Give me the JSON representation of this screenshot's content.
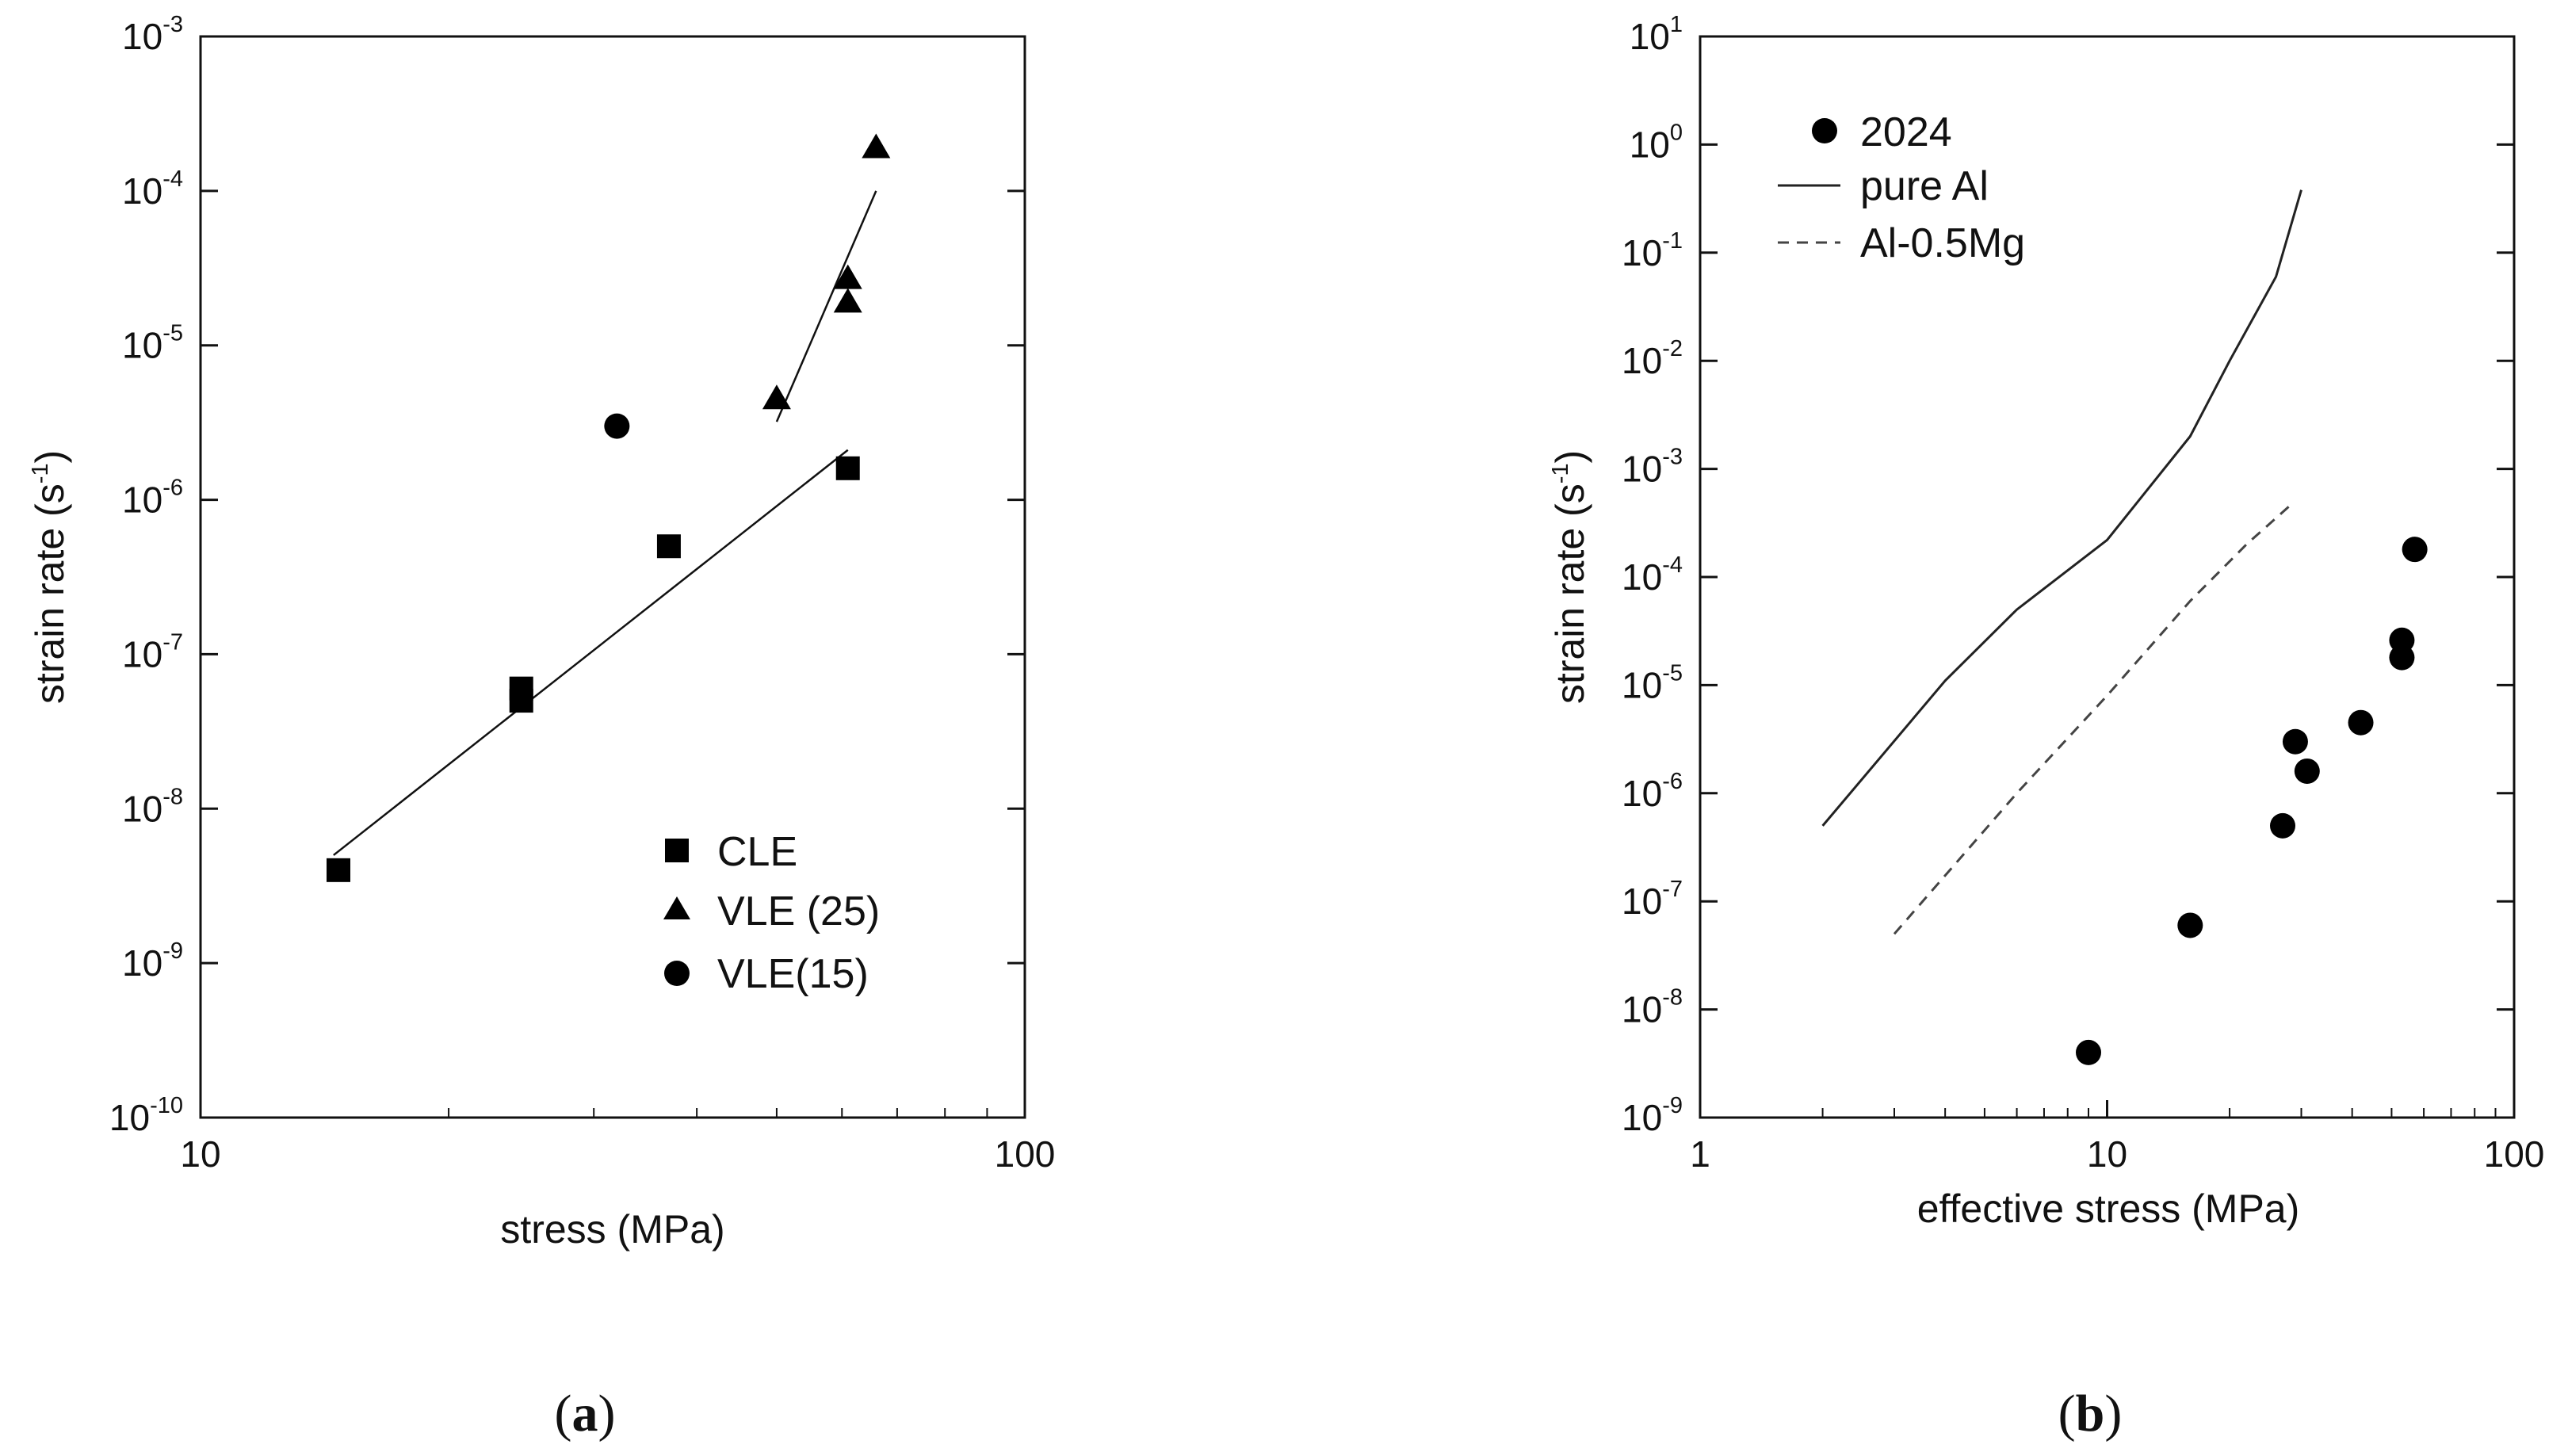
{
  "panels": [
    {
      "type": "scatter",
      "caption_letter": "a",
      "xlabel": "stress (MPa)",
      "ylabel": "strain rate (s",
      "ylabel_sup": "-1",
      "ylabel_close": ")",
      "xscale": "log",
      "yscale": "log",
      "xlim": [
        10,
        100
      ],
      "ylim_exp": [
        -10,
        -3
      ],
      "xticks": [
        {
          "v": 10,
          "label": "10"
        },
        {
          "v": 100,
          "label": "100"
        }
      ],
      "yticks": [
        {
          "exp": -10,
          "label": "-10"
        },
        {
          "exp": -9,
          "label": "-9"
        },
        {
          "exp": -8,
          "label": "-8"
        },
        {
          "exp": -7,
          "label": "-7"
        },
        {
          "exp": -6,
          "label": "-6"
        },
        {
          "exp": -5,
          "label": "-5"
        },
        {
          "exp": -4,
          "label": "-4"
        },
        {
          "exp": -3,
          "label": "-3"
        }
      ],
      "legend_position": "bottom-right",
      "series": [
        {
          "name": "CLE",
          "marker": "square",
          "points": [
            [
              14.7,
              4e-09
            ],
            [
              24.5,
              6e-08
            ],
            [
              24.5,
              5e-08
            ],
            [
              37,
              5e-07
            ],
            [
              61,
              1.6e-06
            ]
          ]
        },
        {
          "name": "VLE (25)",
          "marker": "triangle",
          "points": [
            [
              50,
              4.5e-06
            ],
            [
              61,
              2.7e-05
            ],
            [
              61,
              1.9e-05
            ],
            [
              66,
              0.00019
            ]
          ]
        },
        {
          "name": "VLE(15)",
          "marker": "circle",
          "points": [
            [
              32,
              3e-06
            ]
          ]
        }
      ],
      "fit_lines": [
        {
          "for": "CLE",
          "points": [
            [
              14.5,
              5e-09
            ],
            [
              61,
              2.1e-06
            ]
          ]
        },
        {
          "for": "VLE (25)",
          "points": [
            [
              50,
              3.2e-06
            ],
            [
              66,
              0.0001
            ]
          ]
        }
      ]
    },
    {
      "type": "scatter",
      "caption_letter": "b",
      "xlabel": "effective stress (MPa)",
      "ylabel": "strain rate (s",
      "ylabel_sup": "-1",
      "ylabel_close": ")",
      "xscale": "log",
      "yscale": "log",
      "xlim": [
        1,
        100
      ],
      "ylim_exp": [
        -9,
        1
      ],
      "xticks": [
        {
          "v": 1,
          "label": "1"
        },
        {
          "v": 10,
          "label": "10"
        },
        {
          "v": 100,
          "label": "100"
        }
      ],
      "yticks": [
        {
          "exp": -9,
          "label": "-9"
        },
        {
          "exp": -8,
          "label": "-8"
        },
        {
          "exp": -7,
          "label": "-7"
        },
        {
          "exp": -6,
          "label": "-6"
        },
        {
          "exp": -5,
          "label": "-5"
        },
        {
          "exp": -4,
          "label": "-4"
        },
        {
          "exp": -3,
          "label": "-3"
        },
        {
          "exp": -2,
          "label": "-2"
        },
        {
          "exp": -1,
          "label": "-1"
        },
        {
          "exp": 0,
          "label": "0"
        },
        {
          "exp": 1,
          "label": "1"
        }
      ],
      "legend_position": "top-left",
      "series": [
        {
          "name": "2024",
          "marker": "circle",
          "points": [
            [
              9,
              4e-09
            ],
            [
              16,
              6e-08
            ],
            [
              27,
              5e-07
            ],
            [
              29,
              3e-06
            ],
            [
              31,
              1.6e-06
            ],
            [
              42,
              4.5e-06
            ],
            [
              53,
              2.6e-05
            ],
            [
              53,
              1.8e-05
            ],
            [
              57,
              0.00018
            ]
          ]
        },
        {
          "name": "pure Al",
          "style": "solid",
          "points": [
            [
              2,
              5e-07
            ],
            [
              4,
              1.1e-05
            ],
            [
              6,
              5e-05
            ],
            [
              10,
              0.00022
            ],
            [
              16,
              0.002
            ],
            [
              20,
              0.01
            ],
            [
              26,
              0.06
            ],
            [
              30,
              0.38
            ]
          ]
        },
        {
          "name": "Al-0.5Mg",
          "style": "dashed",
          "points": [
            [
              3,
              5e-08
            ],
            [
              6,
              1e-06
            ],
            [
              10,
              8e-06
            ],
            [
              16,
              6e-05
            ],
            [
              22,
              0.0002
            ],
            [
              28,
              0.00045
            ]
          ]
        }
      ]
    }
  ]
}
